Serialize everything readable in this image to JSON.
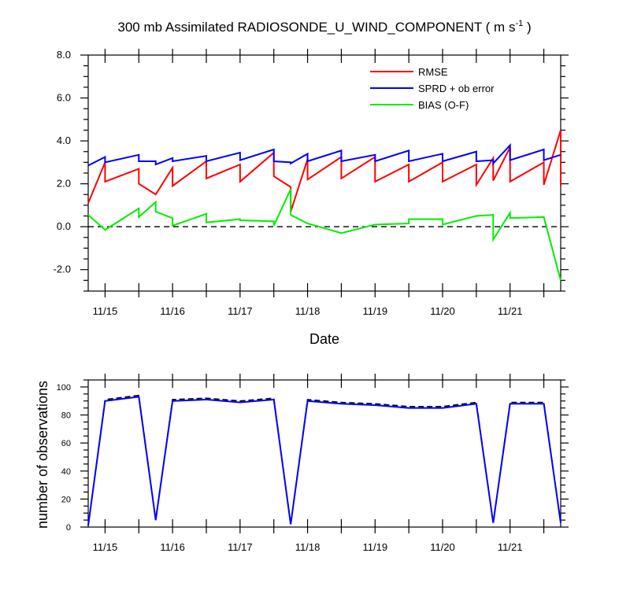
{
  "chart_data": [
    {
      "type": "line",
      "title": "300 mb Assimilated RADIOSONDE_U_WIND_COMPONENT ( m s",
      "title_superscript": "-1",
      "title_close": " )",
      "xlabel": "Date",
      "ylabel": "",
      "x_tick_labels": [
        "11/15",
        "11/16",
        "11/17",
        "11/18",
        "11/19",
        "11/20",
        "11/21"
      ],
      "x_tick_values": [
        15,
        16,
        17,
        18,
        19,
        20,
        21
      ],
      "xlim": [
        14.75,
        21.75
      ],
      "ylim": [
        -3.0,
        8.0
      ],
      "y_tick_labels": [
        "8.0",
        "6.0",
        "4.0",
        "2.0",
        "0.0",
        "-2.0"
      ],
      "y_tick_values": [
        8,
        6,
        4,
        2,
        0,
        -2
      ],
      "zero_line": true,
      "legend_position": "top-right",
      "series": [
        {
          "name": "RMSE",
          "color": "#ff0000",
          "points": [
            [
              14.75,
              1.1
            ],
            [
              15.0,
              3.0
            ],
            [
              15.0,
              2.1
            ],
            [
              15.5,
              2.7
            ],
            [
              15.5,
              2.0
            ],
            [
              15.75,
              1.5
            ],
            [
              15.75,
              1.5
            ],
            [
              16.0,
              2.75
            ],
            [
              16.0,
              1.9
            ],
            [
              16.5,
              3.05
            ],
            [
              16.5,
              2.25
            ],
            [
              17.0,
              2.9
            ],
            [
              17.0,
              2.1
            ],
            [
              17.5,
              3.45
            ],
            [
              17.5,
              2.35
            ],
            [
              17.75,
              1.85
            ],
            [
              17.75,
              0.7
            ],
            [
              18.0,
              3.15
            ],
            [
              18.0,
              2.2
            ],
            [
              18.5,
              3.25
            ],
            [
              18.5,
              2.25
            ],
            [
              19.0,
              3.25
            ],
            [
              19.0,
              2.1
            ],
            [
              19.5,
              2.9
            ],
            [
              19.5,
              2.1
            ],
            [
              20.0,
              3.0
            ],
            [
              20.0,
              2.1
            ],
            [
              20.5,
              2.9
            ],
            [
              20.5,
              1.95
            ],
            [
              20.75,
              3.2
            ],
            [
              20.75,
              2.15
            ],
            [
              21.0,
              3.7
            ],
            [
              21.0,
              2.1
            ],
            [
              21.5,
              3.0
            ],
            [
              21.5,
              1.95
            ],
            [
              21.75,
              4.5
            ],
            [
              21.75,
              1.9
            ]
          ]
        },
        {
          "name": "SPRD + ob error",
          "color": "#0000ff",
          "points": [
            [
              14.75,
              2.85
            ],
            [
              15.0,
              3.25
            ],
            [
              15.0,
              3.0
            ],
            [
              15.5,
              3.35
            ],
            [
              15.5,
              3.05
            ],
            [
              15.75,
              3.05
            ],
            [
              15.75,
              2.9
            ],
            [
              16.0,
              3.2
            ],
            [
              16.0,
              3.05
            ],
            [
              16.5,
              3.3
            ],
            [
              16.5,
              3.05
            ],
            [
              17.0,
              3.45
            ],
            [
              17.0,
              3.1
            ],
            [
              17.5,
              3.6
            ],
            [
              17.5,
              3.05
            ],
            [
              17.75,
              3.0
            ],
            [
              17.75,
              2.95
            ],
            [
              18.0,
              3.4
            ],
            [
              18.0,
              3.05
            ],
            [
              18.5,
              3.55
            ],
            [
              18.5,
              3.05
            ],
            [
              19.0,
              3.35
            ],
            [
              19.0,
              3.05
            ],
            [
              19.5,
              3.55
            ],
            [
              19.5,
              3.05
            ],
            [
              20.0,
              3.4
            ],
            [
              20.0,
              3.05
            ],
            [
              20.5,
              3.5
            ],
            [
              20.5,
              3.05
            ],
            [
              20.75,
              3.1
            ],
            [
              20.75,
              2.95
            ],
            [
              21.0,
              3.8
            ],
            [
              21.0,
              3.1
            ],
            [
              21.5,
              3.6
            ],
            [
              21.5,
              3.1
            ],
            [
              21.75,
              3.35
            ]
          ]
        },
        {
          "name": "BIAS (O-F)",
          "color": "#00ee00",
          "points": [
            [
              14.75,
              0.55
            ],
            [
              15.0,
              -0.15
            ],
            [
              15.5,
              0.85
            ],
            [
              15.5,
              0.45
            ],
            [
              15.75,
              1.15
            ],
            [
              15.75,
              0.7
            ],
            [
              16.0,
              0.4
            ],
            [
              16.0,
              0.05
            ],
            [
              16.5,
              0.6
            ],
            [
              16.5,
              0.2
            ],
            [
              17.0,
              0.35
            ],
            [
              17.0,
              0.3
            ],
            [
              17.5,
              0.25
            ],
            [
              17.5,
              0.05
            ],
            [
              17.75,
              1.75
            ],
            [
              17.75,
              0.55
            ],
            [
              18.0,
              0.15
            ],
            [
              18.5,
              -0.3
            ],
            [
              19.0,
              0.1
            ],
            [
              19.5,
              0.15
            ],
            [
              19.5,
              0.35
            ],
            [
              20.0,
              0.35
            ],
            [
              20.0,
              0.1
            ],
            [
              20.5,
              0.5
            ],
            [
              20.75,
              0.55
            ],
            [
              20.75,
              -0.6
            ],
            [
              21.0,
              0.65
            ],
            [
              21.0,
              0.4
            ],
            [
              21.5,
              0.45
            ],
            [
              21.75,
              -2.5
            ]
          ]
        }
      ]
    },
    {
      "type": "line",
      "title": "",
      "xlabel": "",
      "ylabel": "number of observations",
      "x_tick_labels": [
        "11/15",
        "11/16",
        "11/17",
        "11/18",
        "11/19",
        "11/20",
        "11/21"
      ],
      "x_tick_values": [
        15,
        16,
        17,
        18,
        19,
        20,
        21
      ],
      "xlim": [
        14.75,
        21.75
      ],
      "ylim": [
        0,
        105
      ],
      "y_tick_labels": [
        "100",
        "80",
        "60",
        "40",
        "20",
        "0"
      ],
      "y_tick_values": [
        100,
        80,
        60,
        40,
        20,
        0
      ],
      "series": [
        {
          "name": "",
          "color": "#000000",
          "dashed": true,
          "x": [
            14.75,
            15.0,
            15.5,
            15.75,
            16.0,
            16.5,
            17.0,
            17.5,
            17.75,
            18.0,
            18.5,
            19.0,
            19.5,
            20.0,
            20.5,
            20.75,
            21.0,
            21.5,
            21.75
          ],
          "values": [
            1,
            91,
            94,
            5,
            91,
            92,
            90,
            92,
            2,
            91,
            89,
            88,
            86,
            86,
            89,
            3,
            89,
            89,
            3
          ]
        },
        {
          "name": "",
          "color": "#0000ff",
          "dashed": false,
          "x": [
            14.75,
            15.0,
            15.5,
            15.75,
            16.0,
            16.5,
            17.0,
            17.5,
            17.75,
            18.0,
            18.5,
            19.0,
            19.5,
            20.0,
            20.5,
            20.75,
            21.0,
            21.5,
            21.75
          ],
          "values": [
            1,
            90,
            93,
            5,
            90,
            91,
            89,
            91,
            2,
            90,
            88,
            87,
            85,
            85,
            88,
            3,
            88,
            88,
            3
          ]
        }
      ]
    }
  ]
}
